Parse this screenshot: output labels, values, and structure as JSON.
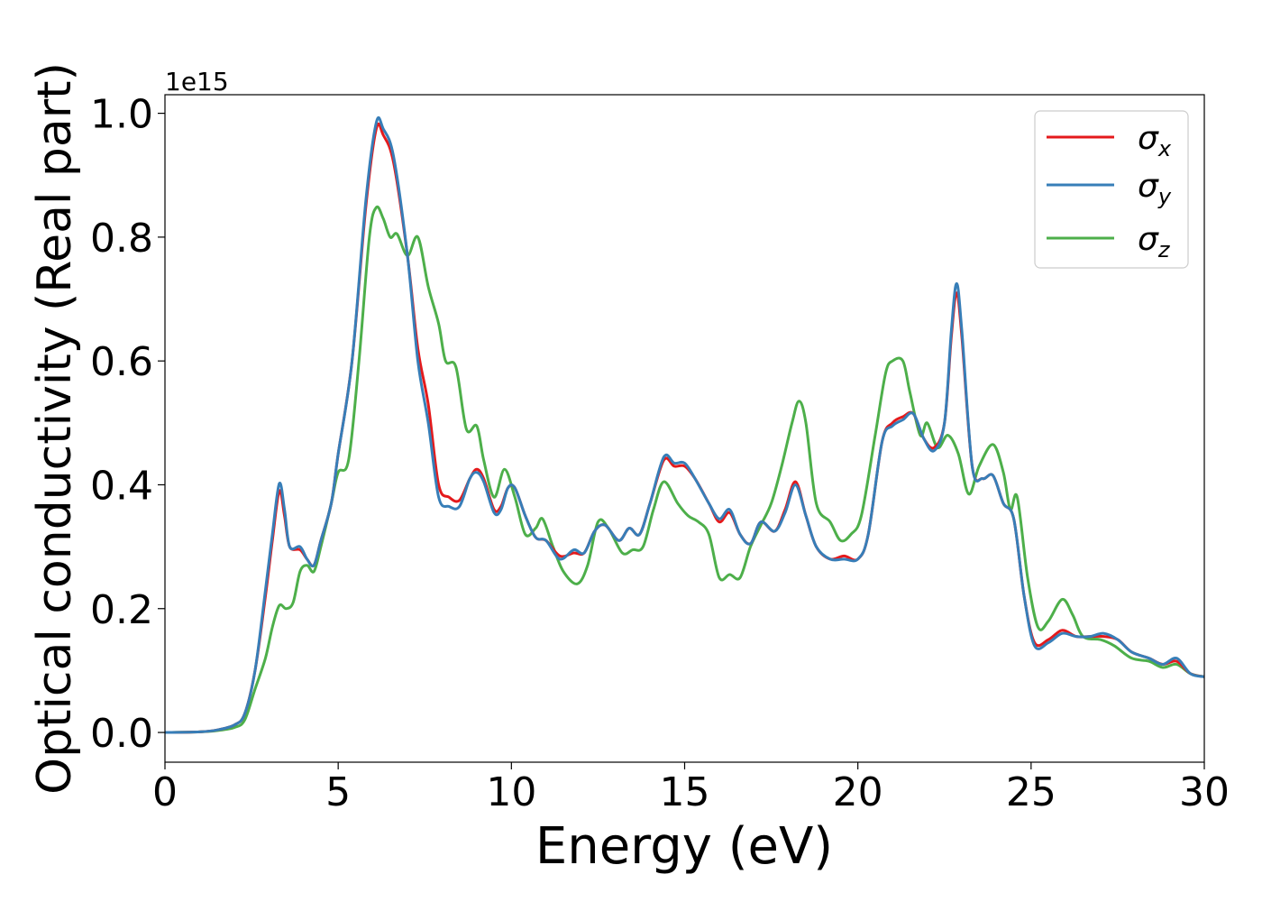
{
  "chart_data": {
    "type": "line",
    "xlabel": "Energy (eV)",
    "ylabel": "Optical conductivity (Real part)",
    "offset_text": "1e15",
    "xlim": [
      0,
      30
    ],
    "ylim": [
      -0.048,
      1.03
    ],
    "x_ticks": [
      0,
      5,
      10,
      15,
      20,
      25,
      30
    ],
    "y_ticks": [
      0.0,
      0.2,
      0.4,
      0.6,
      0.8,
      1.0
    ],
    "x_tick_labels": [
      "0",
      "5",
      "10",
      "15",
      "20",
      "25",
      "30"
    ],
    "y_tick_labels": [
      "0.0",
      "0.2",
      "0.4",
      "0.6",
      "0.8",
      "1.0"
    ],
    "grid": false,
    "legend_position": "top-right",
    "legend": [
      {
        "symbol": "σ",
        "sub": "x"
      },
      {
        "symbol": "σ",
        "sub": "y"
      },
      {
        "symbol": "σ",
        "sub": "z"
      }
    ],
    "series": [
      {
        "color": "#e41a1c",
        "points": [
          [
            0,
            0
          ],
          [
            1,
            0.001
          ],
          [
            1.5,
            0.004
          ],
          [
            2,
            0.012
          ],
          [
            2.3,
            0.03
          ],
          [
            2.6,
            0.1
          ],
          [
            2.9,
            0.22
          ],
          [
            3.1,
            0.31
          ],
          [
            3.3,
            0.39
          ],
          [
            3.45,
            0.35
          ],
          [
            3.6,
            0.3
          ],
          [
            3.9,
            0.295
          ],
          [
            4.1,
            0.28
          ],
          [
            4.3,
            0.27
          ],
          [
            4.5,
            0.31
          ],
          [
            4.8,
            0.37
          ],
          [
            5,
            0.45
          ],
          [
            5.4,
            0.6
          ],
          [
            5.8,
            0.85
          ],
          [
            6.1,
            0.975
          ],
          [
            6.3,
            0.965
          ],
          [
            6.6,
            0.92
          ],
          [
            7.0,
            0.77
          ],
          [
            7.3,
            0.62
          ],
          [
            7.6,
            0.53
          ],
          [
            7.9,
            0.4
          ],
          [
            8.2,
            0.38
          ],
          [
            8.5,
            0.375
          ],
          [
            8.8,
            0.41
          ],
          [
            9.0,
            0.425
          ],
          [
            9.2,
            0.41
          ],
          [
            9.5,
            0.36
          ],
          [
            9.7,
            0.365
          ],
          [
            9.9,
            0.395
          ],
          [
            10.1,
            0.395
          ],
          [
            10.4,
            0.35
          ],
          [
            10.7,
            0.315
          ],
          [
            11.0,
            0.31
          ],
          [
            11.4,
            0.285
          ],
          [
            11.8,
            0.29
          ],
          [
            12.1,
            0.29
          ],
          [
            12.4,
            0.325
          ],
          [
            12.7,
            0.335
          ],
          [
            13.1,
            0.31
          ],
          [
            13.4,
            0.33
          ],
          [
            13.7,
            0.32
          ],
          [
            14.0,
            0.37
          ],
          [
            14.4,
            0.44
          ],
          [
            14.7,
            0.43
          ],
          [
            15.0,
            0.43
          ],
          [
            15.3,
            0.41
          ],
          [
            15.7,
            0.37
          ],
          [
            16.0,
            0.34
          ],
          [
            16.3,
            0.355
          ],
          [
            16.6,
            0.32
          ],
          [
            16.9,
            0.305
          ],
          [
            17.2,
            0.34
          ],
          [
            17.6,
            0.325
          ],
          [
            17.9,
            0.36
          ],
          [
            18.2,
            0.405
          ],
          [
            18.5,
            0.35
          ],
          [
            18.8,
            0.3
          ],
          [
            19.2,
            0.28
          ],
          [
            19.6,
            0.285
          ],
          [
            20.0,
            0.28
          ],
          [
            20.3,
            0.32
          ],
          [
            20.7,
            0.47
          ],
          [
            21.0,
            0.5
          ],
          [
            21.3,
            0.51
          ],
          [
            21.6,
            0.515
          ],
          [
            21.9,
            0.475
          ],
          [
            22.2,
            0.46
          ],
          [
            22.5,
            0.5
          ],
          [
            22.7,
            0.64
          ],
          [
            22.85,
            0.71
          ],
          [
            23.0,
            0.64
          ],
          [
            23.3,
            0.43
          ],
          [
            23.6,
            0.41
          ],
          [
            23.9,
            0.415
          ],
          [
            24.2,
            0.37
          ],
          [
            24.5,
            0.345
          ],
          [
            24.8,
            0.22
          ],
          [
            25.1,
            0.145
          ],
          [
            25.5,
            0.15
          ],
          [
            25.9,
            0.165
          ],
          [
            26.3,
            0.155
          ],
          [
            26.7,
            0.155
          ],
          [
            27.1,
            0.155
          ],
          [
            27.5,
            0.15
          ],
          [
            27.9,
            0.13
          ],
          [
            28.4,
            0.12
          ],
          [
            28.8,
            0.11
          ],
          [
            29.2,
            0.115
          ],
          [
            29.6,
            0.095
          ],
          [
            30,
            0.09
          ]
        ]
      },
      {
        "color": "#377eb8",
        "points": [
          [
            0,
            0
          ],
          [
            1,
            0.001
          ],
          [
            1.5,
            0.004
          ],
          [
            2,
            0.012
          ],
          [
            2.3,
            0.03
          ],
          [
            2.6,
            0.1
          ],
          [
            2.9,
            0.23
          ],
          [
            3.1,
            0.32
          ],
          [
            3.3,
            0.402
          ],
          [
            3.45,
            0.36
          ],
          [
            3.6,
            0.3
          ],
          [
            3.9,
            0.3
          ],
          [
            4.1,
            0.28
          ],
          [
            4.3,
            0.27
          ],
          [
            4.5,
            0.31
          ],
          [
            4.8,
            0.37
          ],
          [
            5,
            0.45
          ],
          [
            5.4,
            0.6
          ],
          [
            5.8,
            0.86
          ],
          [
            6.1,
            0.985
          ],
          [
            6.3,
            0.975
          ],
          [
            6.6,
            0.93
          ],
          [
            7.0,
            0.77
          ],
          [
            7.3,
            0.6
          ],
          [
            7.6,
            0.5
          ],
          [
            7.9,
            0.38
          ],
          [
            8.2,
            0.365
          ],
          [
            8.5,
            0.365
          ],
          [
            8.8,
            0.41
          ],
          [
            9.0,
            0.42
          ],
          [
            9.2,
            0.405
          ],
          [
            9.5,
            0.355
          ],
          [
            9.7,
            0.36
          ],
          [
            9.9,
            0.395
          ],
          [
            10.1,
            0.395
          ],
          [
            10.4,
            0.35
          ],
          [
            10.7,
            0.315
          ],
          [
            11.0,
            0.31
          ],
          [
            11.4,
            0.28
          ],
          [
            11.8,
            0.295
          ],
          [
            12.1,
            0.29
          ],
          [
            12.4,
            0.325
          ],
          [
            12.7,
            0.335
          ],
          [
            13.1,
            0.31
          ],
          [
            13.4,
            0.33
          ],
          [
            13.7,
            0.32
          ],
          [
            14.0,
            0.37
          ],
          [
            14.4,
            0.445
          ],
          [
            14.7,
            0.435
          ],
          [
            15.0,
            0.435
          ],
          [
            15.3,
            0.41
          ],
          [
            15.7,
            0.37
          ],
          [
            16.0,
            0.345
          ],
          [
            16.3,
            0.36
          ],
          [
            16.6,
            0.32
          ],
          [
            16.9,
            0.305
          ],
          [
            17.2,
            0.34
          ],
          [
            17.6,
            0.325
          ],
          [
            17.9,
            0.355
          ],
          [
            18.2,
            0.4
          ],
          [
            18.5,
            0.35
          ],
          [
            18.8,
            0.3
          ],
          [
            19.2,
            0.28
          ],
          [
            19.6,
            0.28
          ],
          [
            20.0,
            0.28
          ],
          [
            20.3,
            0.32
          ],
          [
            20.7,
            0.47
          ],
          [
            21.0,
            0.495
          ],
          [
            21.3,
            0.505
          ],
          [
            21.6,
            0.515
          ],
          [
            21.9,
            0.475
          ],
          [
            22.2,
            0.455
          ],
          [
            22.5,
            0.5
          ],
          [
            22.7,
            0.65
          ],
          [
            22.85,
            0.725
          ],
          [
            23.0,
            0.65
          ],
          [
            23.3,
            0.43
          ],
          [
            23.6,
            0.41
          ],
          [
            23.9,
            0.415
          ],
          [
            24.2,
            0.37
          ],
          [
            24.5,
            0.345
          ],
          [
            24.8,
            0.22
          ],
          [
            25.1,
            0.14
          ],
          [
            25.5,
            0.145
          ],
          [
            25.9,
            0.16
          ],
          [
            26.3,
            0.155
          ],
          [
            26.7,
            0.155
          ],
          [
            27.1,
            0.16
          ],
          [
            27.5,
            0.15
          ],
          [
            27.9,
            0.13
          ],
          [
            28.4,
            0.12
          ],
          [
            28.8,
            0.11
          ],
          [
            29.2,
            0.12
          ],
          [
            29.6,
            0.095
          ],
          [
            30,
            0.09
          ]
        ]
      },
      {
        "color": "#4daf4a",
        "points": [
          [
            0,
            0
          ],
          [
            1,
            0.001
          ],
          [
            1.5,
            0.003
          ],
          [
            2,
            0.008
          ],
          [
            2.3,
            0.02
          ],
          [
            2.6,
            0.07
          ],
          [
            2.9,
            0.12
          ],
          [
            3.1,
            0.17
          ],
          [
            3.3,
            0.205
          ],
          [
            3.5,
            0.2
          ],
          [
            3.7,
            0.21
          ],
          [
            3.9,
            0.26
          ],
          [
            4.1,
            0.27
          ],
          [
            4.3,
            0.26
          ],
          [
            4.5,
            0.3
          ],
          [
            4.8,
            0.37
          ],
          [
            5.0,
            0.42
          ],
          [
            5.3,
            0.44
          ],
          [
            5.6,
            0.6
          ],
          [
            5.9,
            0.8
          ],
          [
            6.1,
            0.848
          ],
          [
            6.3,
            0.83
          ],
          [
            6.5,
            0.8
          ],
          [
            6.7,
            0.805
          ],
          [
            7.0,
            0.77
          ],
          [
            7.3,
            0.8
          ],
          [
            7.6,
            0.72
          ],
          [
            7.9,
            0.66
          ],
          [
            8.1,
            0.6
          ],
          [
            8.4,
            0.59
          ],
          [
            8.7,
            0.49
          ],
          [
            9.0,
            0.495
          ],
          [
            9.2,
            0.44
          ],
          [
            9.5,
            0.38
          ],
          [
            9.8,
            0.425
          ],
          [
            10.1,
            0.38
          ],
          [
            10.4,
            0.32
          ],
          [
            10.7,
            0.33
          ],
          [
            10.9,
            0.345
          ],
          [
            11.2,
            0.3
          ],
          [
            11.5,
            0.26
          ],
          [
            11.9,
            0.24
          ],
          [
            12.2,
            0.27
          ],
          [
            12.5,
            0.34
          ],
          [
            12.8,
            0.33
          ],
          [
            13.2,
            0.29
          ],
          [
            13.5,
            0.295
          ],
          [
            13.8,
            0.3
          ],
          [
            14.1,
            0.36
          ],
          [
            14.4,
            0.405
          ],
          [
            14.8,
            0.37
          ],
          [
            15.1,
            0.35
          ],
          [
            15.4,
            0.34
          ],
          [
            15.7,
            0.32
          ],
          [
            16.0,
            0.25
          ],
          [
            16.3,
            0.255
          ],
          [
            16.6,
            0.25
          ],
          [
            16.9,
            0.3
          ],
          [
            17.2,
            0.335
          ],
          [
            17.5,
            0.37
          ],
          [
            17.8,
            0.43
          ],
          [
            18.1,
            0.5
          ],
          [
            18.3,
            0.535
          ],
          [
            18.5,
            0.5
          ],
          [
            18.8,
            0.37
          ],
          [
            19.2,
            0.34
          ],
          [
            19.5,
            0.31
          ],
          [
            19.8,
            0.32
          ],
          [
            20.1,
            0.35
          ],
          [
            20.5,
            0.48
          ],
          [
            20.8,
            0.58
          ],
          [
            21.0,
            0.6
          ],
          [
            21.3,
            0.6
          ],
          [
            21.5,
            0.55
          ],
          [
            21.8,
            0.48
          ],
          [
            22.0,
            0.5
          ],
          [
            22.3,
            0.46
          ],
          [
            22.6,
            0.48
          ],
          [
            22.9,
            0.45
          ],
          [
            23.2,
            0.385
          ],
          [
            23.5,
            0.43
          ],
          [
            23.9,
            0.465
          ],
          [
            24.2,
            0.42
          ],
          [
            24.4,
            0.36
          ],
          [
            24.6,
            0.38
          ],
          [
            24.9,
            0.25
          ],
          [
            25.2,
            0.17
          ],
          [
            25.5,
            0.18
          ],
          [
            25.9,
            0.215
          ],
          [
            26.2,
            0.19
          ],
          [
            26.5,
            0.155
          ],
          [
            27.0,
            0.15
          ],
          [
            27.4,
            0.14
          ],
          [
            27.9,
            0.12
          ],
          [
            28.4,
            0.115
          ],
          [
            28.8,
            0.105
          ],
          [
            29.2,
            0.11
          ],
          [
            29.6,
            0.095
          ],
          [
            30,
            0.09
          ]
        ]
      }
    ]
  }
}
